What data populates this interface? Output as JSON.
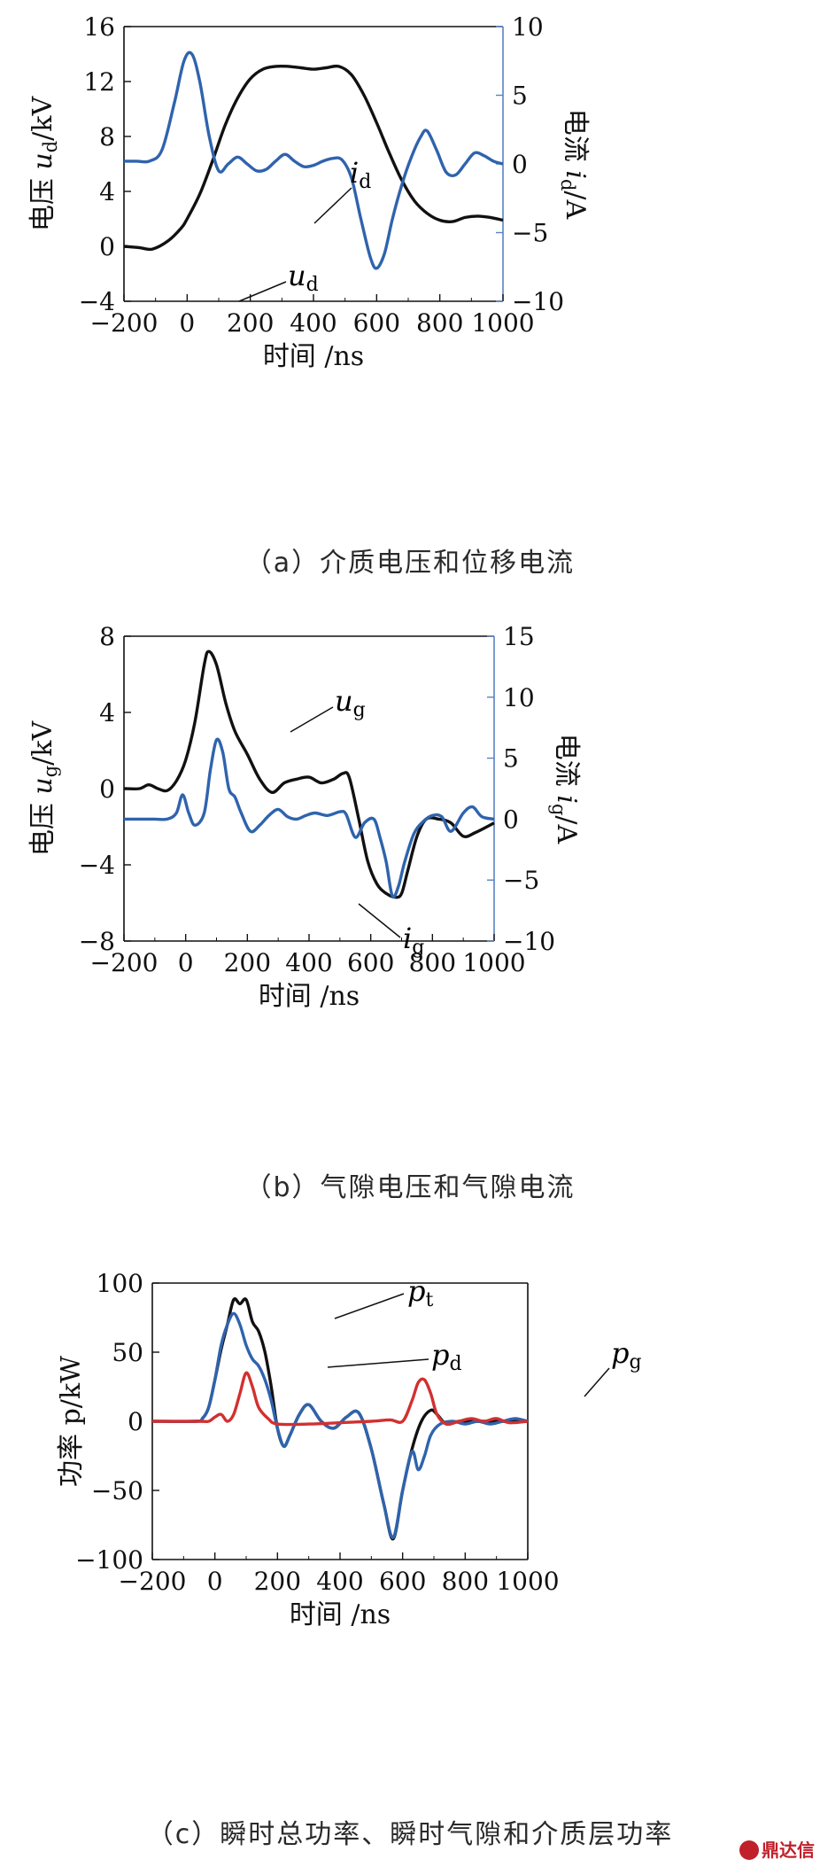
{
  "colors": {
    "black_series": "#111111",
    "blue_series": "#2f63ad",
    "red_series": "#d23030",
    "right_axis": "#5a82c4"
  },
  "panels": [
    {
      "caption": "（a）介质电压和位移电流",
      "xlabel": "时间 /ns",
      "ylabel_left": "电压 u_d/kV",
      "ylabel_right": "电流 i_d/A"
    },
    {
      "caption": "（b）气隙电压和气隙电流",
      "xlabel": "时间 /ns",
      "ylabel_left": "电压 u_g/kV",
      "ylabel_right": "电流 i_g/A"
    },
    {
      "caption": "（c）瞬时总功率、瞬时气隙和介质层功率",
      "xlabel": "时间 /ns",
      "ylabel_left": "功率 p/kW"
    }
  ],
  "watermark": "鼎达信",
  "chart_data": [
    {
      "type": "line",
      "xlabel": "时间 /ns",
      "ylabel": "电压 u_d/kV",
      "ylabel_right": "电流 i_d/A",
      "xlim": [
        -200,
        1000
      ],
      "ylim": [
        -4,
        16
      ],
      "ylim_right": [
        -10,
        10
      ],
      "xticks": [
        -200,
        0,
        200,
        400,
        600,
        800,
        1000
      ],
      "yticks": [
        -4,
        0,
        4,
        8,
        12,
        16
      ],
      "yticks_right": [
        -10,
        -5,
        0,
        5,
        10
      ],
      "grid": false,
      "series": [
        {
          "name": "u_d",
          "axis": "left",
          "color": "#111111",
          "x": [
            -200,
            -150,
            -110,
            -60,
            -20,
            0,
            40,
            80,
            120,
            160,
            200,
            240,
            280,
            320,
            360,
            400,
            440,
            480,
            520,
            560,
            600,
            640,
            680,
            720,
            760,
            800,
            840,
            880,
            920,
            960,
            1000
          ],
          "y": [
            0.0,
            -0.1,
            -0.2,
            0.4,
            1.3,
            2.0,
            3.8,
            6.2,
            8.8,
            10.8,
            12.2,
            12.9,
            13.1,
            13.1,
            13.0,
            12.9,
            13.0,
            13.1,
            12.5,
            11.0,
            9.0,
            6.8,
            4.8,
            3.3,
            2.4,
            1.9,
            1.8,
            2.1,
            2.2,
            2.1,
            1.9
          ]
        },
        {
          "name": "i_d",
          "axis": "right",
          "color": "#2f63ad",
          "x": [
            -200,
            -160,
            -120,
            -80,
            -40,
            -10,
            15,
            40,
            70,
            100,
            130,
            160,
            190,
            220,
            250,
            280,
            310,
            340,
            370,
            400,
            430,
            460,
            490,
            520,
            550,
            580,
            600,
            625,
            650,
            680,
            710,
            740,
            760,
            790,
            820,
            850,
            880,
            910,
            940,
            970,
            1000
          ],
          "y": [
            0.2,
            0.2,
            0.2,
            1.0,
            4.5,
            7.5,
            8.0,
            6.0,
            2.0,
            -0.5,
            0.0,
            0.5,
            0.0,
            -0.5,
            -0.4,
            0.2,
            0.7,
            0.2,
            -0.2,
            -0.1,
            0.2,
            0.4,
            0.3,
            -1.0,
            -4.0,
            -6.8,
            -7.6,
            -6.5,
            -4.0,
            -1.5,
            0.5,
            2.0,
            2.4,
            1.0,
            -0.6,
            -0.8,
            0.0,
            0.8,
            0.6,
            0.2,
            0.0
          ]
        }
      ],
      "annotations": [
        "i_d",
        "u_d"
      ]
    },
    {
      "type": "line",
      "xlabel": "时间 /ns",
      "ylabel": "电压 u_g/kV",
      "ylabel_right": "电流 i_g/A",
      "xlim": [
        -200,
        1000
      ],
      "ylim": [
        -8,
        8
      ],
      "ylim_right": [
        -10,
        15
      ],
      "xticks": [
        -200,
        0,
        200,
        400,
        600,
        800,
        1000
      ],
      "yticks": [
        -8,
        -4,
        0,
        4,
        8
      ],
      "yticks_right": [
        -10,
        -5,
        0,
        5,
        10,
        15
      ],
      "grid": false,
      "series": [
        {
          "name": "u_g",
          "axis": "left",
          "color": "#111111",
          "x": [
            -200,
            -150,
            -120,
            -90,
            -60,
            -30,
            0,
            30,
            60,
            75,
            100,
            130,
            160,
            200,
            240,
            280,
            320,
            360,
            400,
            440,
            480,
            510,
            530,
            560,
            590,
            620,
            650,
            680,
            700,
            720,
            750,
            780,
            820,
            860,
            900,
            940,
            1000
          ],
          "y": [
            0.0,
            0.0,
            0.2,
            0.0,
            -0.1,
            0.4,
            1.5,
            3.5,
            6.5,
            7.2,
            6.5,
            4.5,
            3.0,
            1.8,
            0.5,
            -0.2,
            0.3,
            0.5,
            0.6,
            0.3,
            0.5,
            0.8,
            0.6,
            -1.5,
            -3.8,
            -5.0,
            -5.5,
            -5.7,
            -5.5,
            -4.3,
            -2.5,
            -1.6,
            -1.6,
            -1.8,
            -2.5,
            -2.3,
            -1.8
          ]
        },
        {
          "name": "i_g",
          "axis": "right",
          "color": "#2f63ad",
          "x": [
            -200,
            -150,
            -100,
            -60,
            -30,
            -10,
            10,
            30,
            60,
            80,
            100,
            120,
            140,
            160,
            180,
            210,
            240,
            270,
            300,
            330,
            360,
            390,
            420,
            460,
            500,
            520,
            550,
            580,
            610,
            630,
            650,
            670,
            690,
            710,
            740,
            770,
            800,
            830,
            860,
            900,
            930,
            960,
            1000
          ],
          "y": [
            0.0,
            0.0,
            0.0,
            0.0,
            0.5,
            2.0,
            0.5,
            -0.5,
            0.5,
            4.0,
            6.5,
            5.5,
            2.5,
            1.8,
            0.5,
            -1.0,
            -0.5,
            0.3,
            0.8,
            0.2,
            0.0,
            0.3,
            0.5,
            0.3,
            0.6,
            0.4,
            -1.5,
            -0.3,
            0.0,
            -1.5,
            -3.5,
            -6.3,
            -5.5,
            -3.5,
            -1.2,
            -0.2,
            0.3,
            0.2,
            -1.0,
            0.5,
            1.0,
            0.2,
            0.0
          ]
        }
      ],
      "annotations": [
        "u_g",
        "i_g"
      ]
    },
    {
      "type": "line",
      "xlabel": "时间 /ns",
      "ylabel": "功率 p/kW",
      "xlim": [
        -200,
        1000
      ],
      "ylim": [
        -100,
        100
      ],
      "xticks": [
        -200,
        0,
        200,
        400,
        600,
        800,
        1000
      ],
      "yticks": [
        -100,
        -50,
        0,
        50,
        100
      ],
      "grid": false,
      "series": [
        {
          "name": "p_t",
          "axis": "left",
          "color": "#111111",
          "x": [
            -200,
            -60,
            -40,
            -20,
            0,
            20,
            40,
            60,
            80,
            100,
            120,
            140,
            160,
            180,
            200,
            220,
            240,
            270,
            300,
            340,
            380,
            420,
            460,
            500,
            540,
            570,
            600,
            630,
            660,
            690,
            710,
            740,
            780,
            820,
            860,
            900,
            940,
            1000
          ],
          "y": [
            0,
            0,
            2,
            10,
            30,
            52,
            70,
            88,
            85,
            88,
            72,
            65,
            50,
            25,
            -5,
            -18,
            -10,
            5,
            12,
            0,
            -5,
            3,
            6,
            -20,
            -60,
            -85,
            -50,
            -20,
            0,
            8,
            5,
            -2,
            0,
            0,
            0,
            0,
            0,
            0
          ]
        },
        {
          "name": "p_d",
          "axis": "left",
          "color": "#2f63ad",
          "x": [
            -200,
            -60,
            -40,
            -20,
            0,
            20,
            40,
            60,
            80,
            100,
            120,
            140,
            160,
            180,
            200,
            220,
            240,
            270,
            300,
            340,
            380,
            420,
            460,
            500,
            540,
            570,
            600,
            630,
            650,
            670,
            690,
            720,
            760,
            800,
            840,
            880,
            920,
            960,
            1000
          ],
          "y": [
            0,
            0,
            2,
            10,
            30,
            55,
            70,
            78,
            70,
            55,
            45,
            40,
            30,
            15,
            -5,
            -18,
            -10,
            5,
            12,
            0,
            -5,
            3,
            6,
            -20,
            -60,
            -84,
            -50,
            -22,
            -35,
            -25,
            -10,
            -2,
            0,
            -2,
            0,
            -2,
            0,
            2,
            0
          ]
        },
        {
          "name": "p_g",
          "axis": "left",
          "color": "#d23030",
          "x": [
            -200,
            -50,
            -20,
            0,
            20,
            40,
            60,
            80,
            100,
            120,
            140,
            170,
            200,
            300,
            400,
            500,
            560,
            600,
            630,
            650,
            670,
            690,
            710,
            740,
            780,
            820,
            860,
            900,
            940,
            1000
          ],
          "y": [
            0,
            0,
            0,
            3,
            5,
            0,
            5,
            20,
            35,
            25,
            10,
            2,
            -2,
            -2,
            -1,
            0,
            1,
            0,
            15,
            28,
            30,
            20,
            5,
            -2,
            0,
            2,
            0,
            2,
            -1,
            0
          ]
        }
      ],
      "annotations": [
        "p_t",
        "p_d",
        "p_g"
      ]
    }
  ]
}
